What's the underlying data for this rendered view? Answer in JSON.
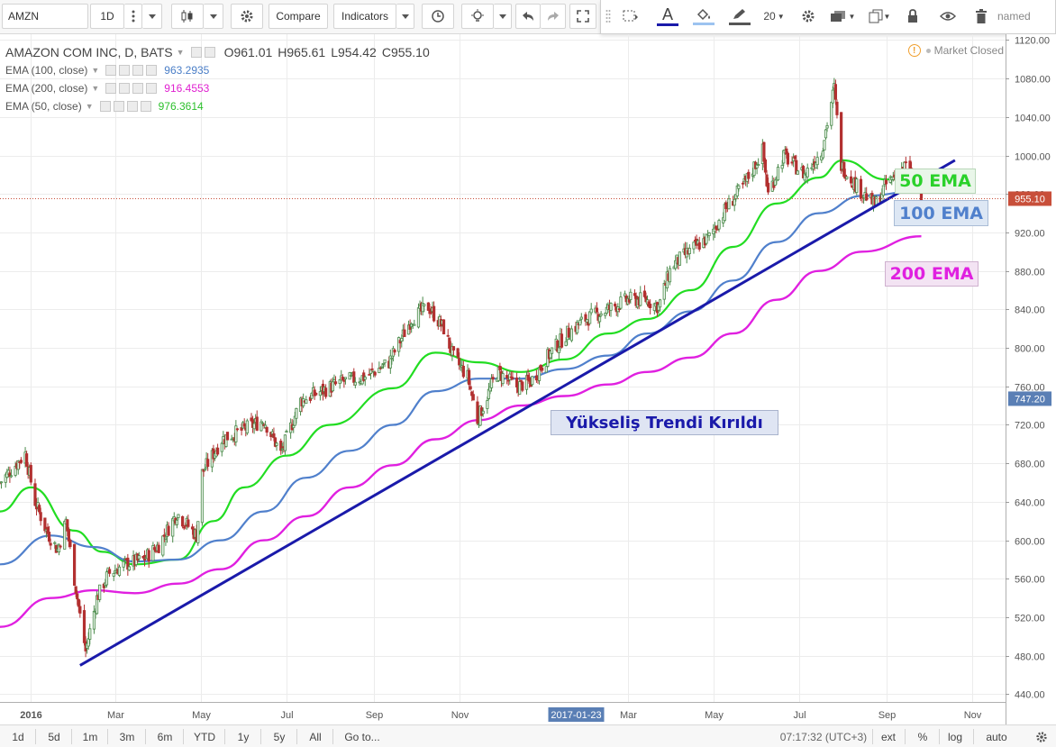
{
  "toolbar": {
    "symbol": "AMZN",
    "interval": "1D",
    "compare_label": "Compare",
    "indicators_label": "Indicators",
    "font_size": "20",
    "layout_name": "named"
  },
  "legend": {
    "main": {
      "title": "AMAZON COM INC, D, BATS",
      "o": "O961.01",
      "h": "H965.61",
      "l": "L954.42",
      "c": "C955.10"
    },
    "ema100": {
      "label": "EMA (100, close)",
      "value": "963.2935",
      "color": "#4a7ec7"
    },
    "ema200": {
      "label": "EMA (200, close)",
      "value": "916.4553",
      "color": "#e020d0"
    },
    "ema50": {
      "label": "EMA (50, close)",
      "value": "976.3614",
      "color": "#22cc22"
    }
  },
  "status": {
    "market_closed": "Market Closed"
  },
  "price_tags": {
    "last": "955.10",
    "trend": "747.20"
  },
  "colors": {
    "up": "#4a8a4a",
    "down": "#b23030",
    "ema50": "#22dd22",
    "ema100": "#5080cc",
    "ema200": "#e020e0",
    "trendline": "#1a1aaa",
    "last_price_tag": "#c84f3a",
    "trend_tag": "#5a7fb5"
  },
  "annotations": {
    "ema50": "50 EMA",
    "ema100": "100 EMA",
    "ema200": "200 EMA",
    "trend_broken": "Yükseliş Trendi Kırıldı"
  },
  "bottom": {
    "ranges": [
      "1d",
      "5d",
      "1m",
      "3m",
      "6m",
      "YTD",
      "1y",
      "5y",
      "All"
    ],
    "goto": "Go to...",
    "time": "07:17:32 (UTC+3)",
    "ext": "ext",
    "percent": "%",
    "log": "log",
    "auto": "auto"
  },
  "chart_data": {
    "type": "line",
    "title": "AMAZON COM INC, D, BATS",
    "y_ticks": [
      440,
      480,
      520,
      560,
      600,
      640,
      680,
      720,
      760,
      800,
      840,
      880,
      920,
      960,
      1000,
      1040,
      1080,
      1120
    ],
    "ylim": [
      432,
      1126
    ],
    "x_ticks": [
      "2016",
      "Mar",
      "May",
      "Jul",
      "Sep",
      "Nov",
      "2017-01-23",
      "Mar",
      "May",
      "Jul",
      "Sep",
      "Nov"
    ],
    "x_range": [
      "2015-12-10",
      "2017-11-25"
    ],
    "last_close": 955.1,
    "price_path": [
      [
        "2015-12-10",
        660
      ],
      [
        "2015-12-28",
        690
      ],
      [
        "2016-01-04",
        640
      ],
      [
        "2016-01-12",
        610
      ],
      [
        "2016-01-20",
        590
      ],
      [
        "2016-01-26",
        620
      ],
      [
        "2016-02-03",
        540
      ],
      [
        "2016-02-09",
        485
      ],
      [
        "2016-02-17",
        540
      ],
      [
        "2016-02-25",
        565
      ],
      [
        "2016-03-08",
        575
      ],
      [
        "2016-03-21",
        580
      ],
      [
        "2016-04-01",
        595
      ],
      [
        "2016-04-14",
        628
      ],
      [
        "2016-04-28",
        605
      ],
      [
        "2016-05-02",
        670
      ],
      [
        "2016-05-16",
        705
      ],
      [
        "2016-05-31",
        715
      ],
      [
        "2016-06-15",
        725
      ],
      [
        "2016-06-27",
        690
      ],
      [
        "2016-07-11",
        745
      ],
      [
        "2016-07-26",
        755
      ],
      [
        "2016-08-10",
        765
      ],
      [
        "2016-08-26",
        770
      ],
      [
        "2016-09-12",
        785
      ],
      [
        "2016-09-28",
        830
      ],
      [
        "2016-10-10",
        843
      ],
      [
        "2016-10-21",
        820
      ],
      [
        "2016-10-28",
        790
      ],
      [
        "2016-11-07",
        770
      ],
      [
        "2016-11-14",
        725
      ],
      [
        "2016-11-28",
        775
      ],
      [
        "2016-12-12",
        760
      ],
      [
        "2016-12-22",
        765
      ],
      [
        "2017-01-05",
        795
      ],
      [
        "2017-01-17",
        815
      ],
      [
        "2017-01-30",
        830
      ],
      [
        "2017-02-15",
        840
      ],
      [
        "2017-03-01",
        850
      ],
      [
        "2017-03-14",
        850
      ],
      [
        "2017-03-23",
        843
      ],
      [
        "2017-04-01",
        885
      ],
      [
        "2017-04-18",
        905
      ],
      [
        "2017-04-28",
        915
      ],
      [
        "2017-05-10",
        945
      ],
      [
        "2017-05-23",
        970
      ],
      [
        "2017-06-05",
        1005
      ],
      [
        "2017-06-09",
        960
      ],
      [
        "2017-06-20",
        1000
      ],
      [
        "2017-07-05",
        980
      ],
      [
        "2017-07-17",
        1005
      ],
      [
        "2017-07-26",
        1070
      ],
      [
        "2017-07-31",
        990
      ],
      [
        "2017-08-10",
        970
      ],
      [
        "2017-08-24",
        948
      ],
      [
        "2017-09-01",
        970
      ],
      [
        "2017-09-08",
        980
      ],
      [
        "2017-09-15",
        990
      ],
      [
        "2017-09-26",
        955
      ]
    ],
    "series": [
      {
        "name": "EMA (50, close)",
        "values": [
          [
            "2015-12-10",
            630
          ],
          [
            "2016-01-01",
            655
          ],
          [
            "2016-02-01",
            610
          ],
          [
            "2016-02-21",
            588
          ],
          [
            "2016-03-15",
            575
          ],
          [
            "2016-04-15",
            580
          ],
          [
            "2016-05-10",
            620
          ],
          [
            "2016-06-01",
            655
          ],
          [
            "2016-07-01",
            688
          ],
          [
            "2016-08-01",
            720
          ],
          [
            "2016-09-15",
            758
          ],
          [
            "2016-10-15",
            795
          ],
          [
            "2016-11-15",
            785
          ],
          [
            "2016-12-15",
            775
          ],
          [
            "2017-01-15",
            788
          ],
          [
            "2017-02-15",
            815
          ],
          [
            "2017-03-15",
            830
          ],
          [
            "2017-04-15",
            860
          ],
          [
            "2017-05-15",
            905
          ],
          [
            "2017-06-15",
            950
          ],
          [
            "2017-07-15",
            977
          ],
          [
            "2017-08-01",
            995
          ],
          [
            "2017-09-01",
            975
          ],
          [
            "2017-09-26",
            977
          ]
        ]
      },
      {
        "name": "EMA (100, close)",
        "values": [
          [
            "2015-12-10",
            575
          ],
          [
            "2016-01-15",
            605
          ],
          [
            "2016-02-15",
            593
          ],
          [
            "2016-03-15",
            578
          ],
          [
            "2016-04-15",
            580
          ],
          [
            "2016-05-15",
            600
          ],
          [
            "2016-06-15",
            630
          ],
          [
            "2016-07-15",
            665
          ],
          [
            "2016-08-15",
            693
          ],
          [
            "2016-09-15",
            720
          ],
          [
            "2016-10-15",
            755
          ],
          [
            "2016-11-15",
            768
          ],
          [
            "2016-12-15",
            768
          ],
          [
            "2017-01-15",
            778
          ],
          [
            "2017-02-15",
            792
          ],
          [
            "2017-03-15",
            815
          ],
          [
            "2017-04-15",
            838
          ],
          [
            "2017-05-15",
            870
          ],
          [
            "2017-06-15",
            910
          ],
          [
            "2017-07-15",
            940
          ],
          [
            "2017-08-15",
            958
          ],
          [
            "2017-09-26",
            963
          ]
        ]
      },
      {
        "name": "EMA (200, close)",
        "values": [
          [
            "2015-12-10",
            510
          ],
          [
            "2016-01-15",
            540
          ],
          [
            "2016-02-15",
            548
          ],
          [
            "2016-03-15",
            545
          ],
          [
            "2016-04-15",
            555
          ],
          [
            "2016-05-15",
            570
          ],
          [
            "2016-06-15",
            600
          ],
          [
            "2016-07-15",
            625
          ],
          [
            "2016-08-15",
            655
          ],
          [
            "2016-09-15",
            678
          ],
          [
            "2016-10-15",
            705
          ],
          [
            "2016-11-15",
            725
          ],
          [
            "2016-12-15",
            740
          ],
          [
            "2017-01-15",
            750
          ],
          [
            "2017-02-15",
            762
          ],
          [
            "2017-03-15",
            775
          ],
          [
            "2017-04-15",
            790
          ],
          [
            "2017-05-15",
            815
          ],
          [
            "2017-06-15",
            850
          ],
          [
            "2017-07-15",
            880
          ],
          [
            "2017-08-15",
            900
          ],
          [
            "2017-09-26",
            916
          ]
        ]
      },
      {
        "name": "trendline",
        "values": [
          [
            "2016-02-05",
            470
          ],
          [
            "2017-10-20",
            995
          ]
        ]
      }
    ]
  }
}
